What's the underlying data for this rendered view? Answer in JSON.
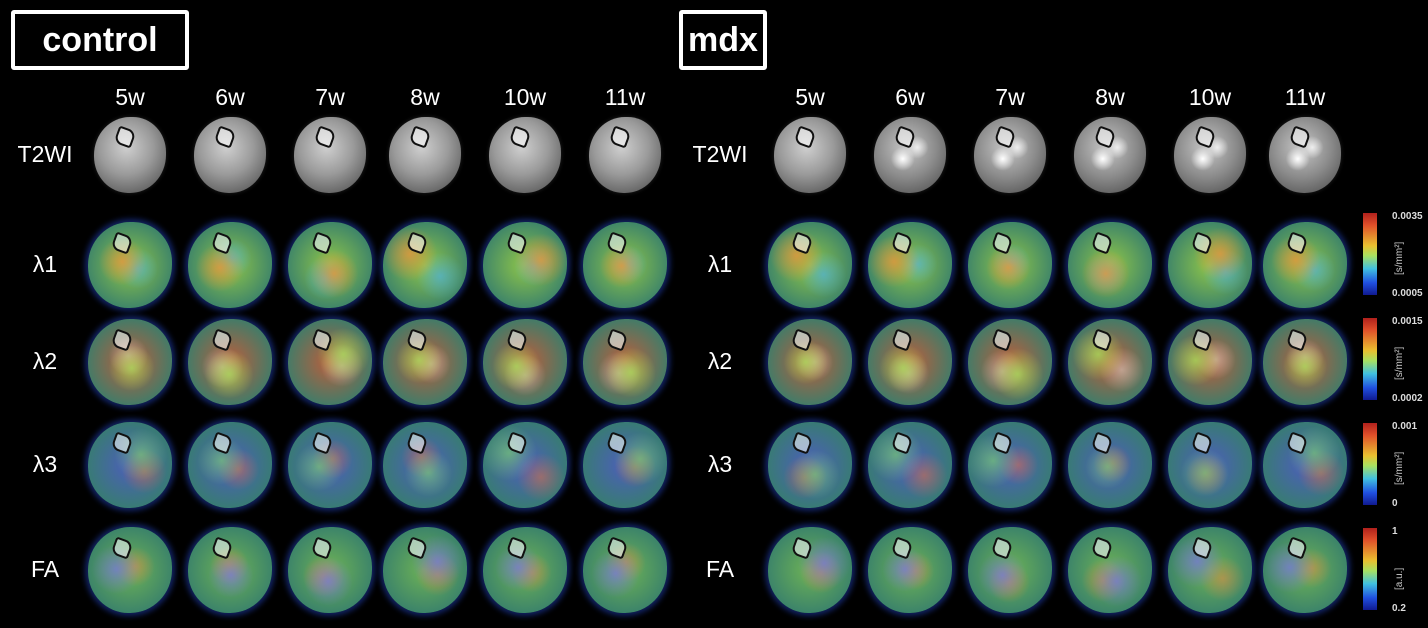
{
  "groups": [
    {
      "label": "control",
      "columns": [
        "5w",
        "6w",
        "7w",
        "8w",
        "10w",
        "11w"
      ]
    },
    {
      "label": "mdx",
      "columns": [
        "5w",
        "6w",
        "7w",
        "8w",
        "10w",
        "11w"
      ]
    }
  ],
  "rows": [
    "T2WI",
    "λ1",
    "λ2",
    "λ3",
    "FA"
  ],
  "colorbars": [
    {
      "row": "λ1",
      "max": "0.0035",
      "min": "0.0005",
      "unit": "[s/mm²]"
    },
    {
      "row": "λ2",
      "max": "0.0015",
      "min": "0.0002",
      "unit": "[s/mm²]"
    },
    {
      "row": "λ3",
      "max": "0.001",
      "min": "0",
      "unit": "[s/mm²]"
    },
    {
      "row": "FA",
      "max": "1",
      "min": "0.2",
      "unit": "[a.u.]"
    }
  ],
  "colormap": [
    "#101a90",
    "#2050e0",
    "#40c0e0",
    "#a8e060",
    "#e8c030",
    "#e0502a",
    "#b0201c"
  ]
}
